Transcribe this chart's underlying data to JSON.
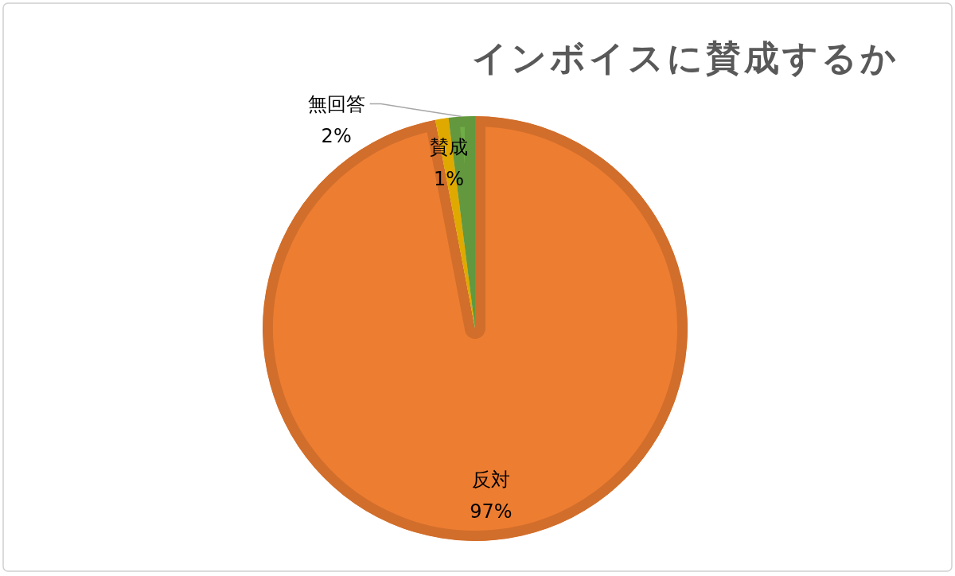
{
  "chart_data": {
    "type": "pie",
    "title": "インボイスに賛成するか",
    "categories": [
      "反対",
      "賛成",
      "無回答"
    ],
    "values": [
      97,
      1,
      2
    ],
    "colors": [
      "#ed7d31",
      "#ffc000",
      "#70ad47"
    ],
    "value_labels": [
      "97%",
      "1%",
      "2%"
    ]
  }
}
